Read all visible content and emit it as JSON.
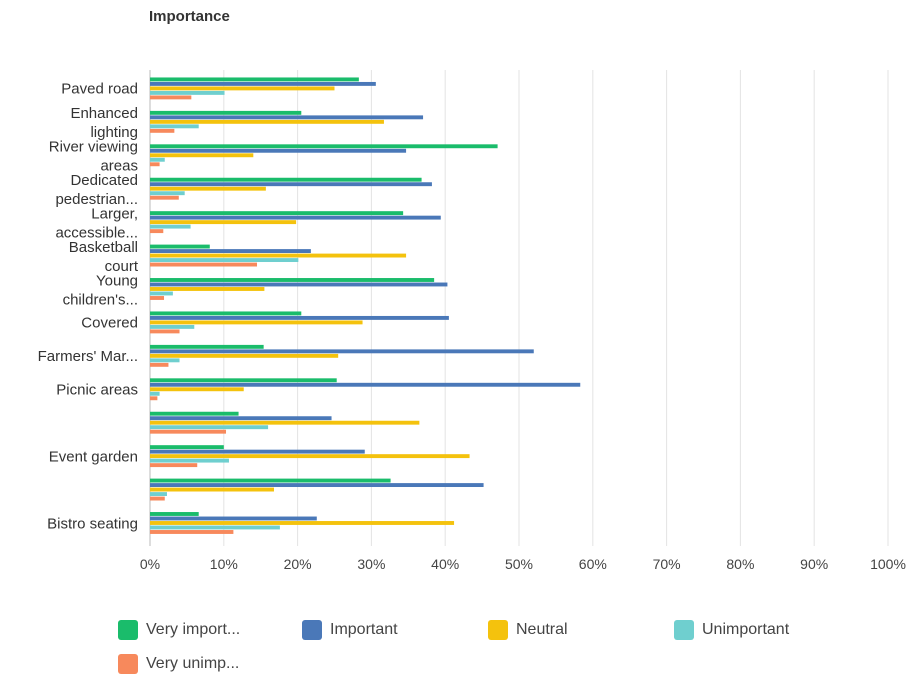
{
  "chart_data": {
    "type": "bar",
    "orientation": "horizontal",
    "title": "Importance",
    "categories": [
      "Paved road",
      "Enhanced lighting",
      "River viewing areas",
      "Dedicated pedestrian...",
      "Larger, accessible...",
      "Basketball court",
      "Young children's...",
      "Covered",
      "Farmers' Mar...",
      "Picnic areas",
      "",
      "Event garden",
      "",
      "Bistro seating"
    ],
    "category_label_lines": [
      [
        "Paved road"
      ],
      [
        "Enhanced",
        "lighting"
      ],
      [
        "River viewing",
        "areas"
      ],
      [
        "Dedicated",
        "pedestrian..."
      ],
      [
        "Larger,",
        "accessible..."
      ],
      [
        "Basketball",
        "court"
      ],
      [
        "Young",
        "children's..."
      ],
      [
        "Covered"
      ],
      [
        "Farmers' Mar..."
      ],
      [
        "Picnic areas"
      ],
      [],
      [
        "Event garden"
      ],
      [],
      [
        "Bistro seating"
      ]
    ],
    "series": [
      {
        "name": "Very import...",
        "color": "#1abc6b",
        "values": [
          28.3,
          20.5,
          47.1,
          36.8,
          34.3,
          8.1,
          38.5,
          20.5,
          15.4,
          25.3,
          12.0,
          10.0,
          32.6,
          6.6
        ]
      },
      {
        "name": "Important",
        "color": "#4a78b8",
        "values": [
          30.6,
          37.0,
          34.7,
          38.2,
          39.4,
          21.8,
          40.3,
          40.5,
          52.0,
          58.3,
          24.6,
          29.1,
          45.2,
          22.6
        ]
      },
      {
        "name": "Neutral",
        "color": "#f4c20d",
        "values": [
          25.0,
          31.7,
          14.0,
          15.7,
          19.8,
          34.7,
          15.5,
          28.8,
          25.5,
          12.7,
          36.5,
          43.3,
          16.8,
          41.2
        ]
      },
      {
        "name": "Unimportant",
        "color": "#6fcfcf",
        "values": [
          10.1,
          6.6,
          2.0,
          4.7,
          5.5,
          20.1,
          3.1,
          6.0,
          4.0,
          1.3,
          16.0,
          10.7,
          2.3,
          17.6
        ]
      },
      {
        "name": "Very unimp...",
        "color": "#f7895c",
        "values": [
          5.6,
          3.3,
          1.3,
          3.9,
          1.8,
          14.5,
          1.9,
          4.0,
          2.5,
          1.0,
          10.3,
          6.4,
          2.0,
          11.3
        ]
      }
    ],
    "xlim": [
      0,
      100
    ],
    "x_ticks": [
      "0%",
      "10%",
      "20%",
      "30%",
      "40%",
      "50%",
      "60%",
      "70%",
      "80%",
      "90%",
      "100%"
    ],
    "grid": "vertical",
    "legend_position": "bottom"
  }
}
